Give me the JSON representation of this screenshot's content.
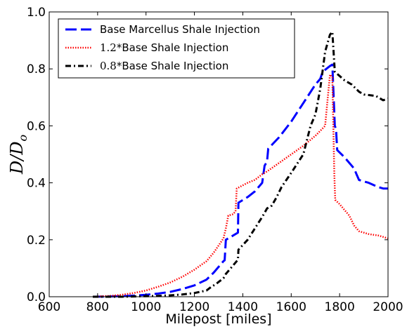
{
  "chart_data": {
    "type": "line",
    "xlabel": "Milepost [miles]",
    "ylabel": "D/D",
    "ylabel_subscript": "o",
    "xlim": [
      600,
      2000
    ],
    "ylim": [
      0,
      1.0
    ],
    "xticks": [
      600,
      800,
      1000,
      1200,
      1400,
      1600,
      1800,
      2000
    ],
    "yticks": [
      0.0,
      0.2,
      0.4,
      0.6,
      0.8,
      1.0
    ],
    "xtick_labels": [
      "600",
      "800",
      "1000",
      "1200",
      "1400",
      "1600",
      "1800",
      "2000"
    ],
    "ytick_labels": [
      "0.0",
      "0.2",
      "0.4",
      "0.6",
      "0.8",
      "1.0"
    ],
    "grid": false,
    "legend_position": "top-left",
    "series": [
      {
        "name": "Base Marcellus Shale Injection",
        "color": "#0000ff",
        "style": "dashed",
        "points": [
          [
            780,
            0.0
          ],
          [
            850,
            0.001
          ],
          [
            900,
            0.002
          ],
          [
            950,
            0.004
          ],
          [
            1000,
            0.007
          ],
          [
            1050,
            0.011
          ],
          [
            1100,
            0.017
          ],
          [
            1150,
            0.027
          ],
          [
            1200,
            0.04
          ],
          [
            1250,
            0.06
          ],
          [
            1280,
            0.085
          ],
          [
            1300,
            0.105
          ],
          [
            1320,
            0.125
          ],
          [
            1325,
            0.128
          ],
          [
            1330,
            0.2
          ],
          [
            1360,
            0.215
          ],
          [
            1380,
            0.225
          ],
          [
            1382,
            0.33
          ],
          [
            1420,
            0.35
          ],
          [
            1450,
            0.37
          ],
          [
            1480,
            0.4
          ],
          [
            1490,
            0.46
          ],
          [
            1500,
            0.475
          ],
          [
            1505,
            0.52
          ],
          [
            1550,
            0.56
          ],
          [
            1600,
            0.615
          ],
          [
            1650,
            0.68
          ],
          [
            1700,
            0.745
          ],
          [
            1720,
            0.765
          ],
          [
            1730,
            0.79
          ],
          [
            1760,
            0.81
          ],
          [
            1770,
            0.815
          ],
          [
            1780,
            0.6
          ],
          [
            1785,
            0.59
          ],
          [
            1790,
            0.515
          ],
          [
            1820,
            0.49
          ],
          [
            1860,
            0.45
          ],
          [
            1870,
            0.43
          ],
          [
            1880,
            0.41
          ],
          [
            1920,
            0.4
          ],
          [
            1960,
            0.385
          ],
          [
            1980,
            0.38
          ],
          [
            2000,
            0.38
          ]
        ]
      },
      {
        "name": "1.2*Base Shale Injection",
        "color": "#ff0000",
        "style": "dotted",
        "points": [
          [
            780,
            0.0
          ],
          [
            850,
            0.003
          ],
          [
            900,
            0.007
          ],
          [
            950,
            0.013
          ],
          [
            1000,
            0.022
          ],
          [
            1050,
            0.035
          ],
          [
            1100,
            0.05
          ],
          [
            1150,
            0.07
          ],
          [
            1200,
            0.095
          ],
          [
            1250,
            0.125
          ],
          [
            1280,
            0.155
          ],
          [
            1300,
            0.18
          ],
          [
            1320,
            0.205
          ],
          [
            1330,
            0.24
          ],
          [
            1340,
            0.285
          ],
          [
            1360,
            0.29
          ],
          [
            1370,
            0.3
          ],
          [
            1375,
            0.38
          ],
          [
            1420,
            0.4
          ],
          [
            1450,
            0.41
          ],
          [
            1480,
            0.43
          ],
          [
            1500,
            0.44
          ],
          [
            1550,
            0.47
          ],
          [
            1600,
            0.5
          ],
          [
            1650,
            0.53
          ],
          [
            1700,
            0.565
          ],
          [
            1740,
            0.6
          ],
          [
            1760,
            0.78
          ],
          [
            1770,
            0.77
          ],
          [
            1778,
            0.43
          ],
          [
            1782,
            0.34
          ],
          [
            1800,
            0.325
          ],
          [
            1820,
            0.305
          ],
          [
            1840,
            0.285
          ],
          [
            1860,
            0.25
          ],
          [
            1880,
            0.23
          ],
          [
            1920,
            0.22
          ],
          [
            1960,
            0.215
          ],
          [
            2000,
            0.205
          ]
        ]
      },
      {
        "name": "0.8*Base Shale Injection",
        "color": "#000000",
        "style": "dashdot",
        "points": [
          [
            780,
            0.0
          ],
          [
            850,
            0.0
          ],
          [
            900,
            0.0
          ],
          [
            950,
            0.001
          ],
          [
            1000,
            0.002
          ],
          [
            1050,
            0.003
          ],
          [
            1100,
            0.005
          ],
          [
            1150,
            0.008
          ],
          [
            1200,
            0.013
          ],
          [
            1250,
            0.022
          ],
          [
            1270,
            0.035
          ],
          [
            1290,
            0.045
          ],
          [
            1300,
            0.052
          ],
          [
            1320,
            0.065
          ],
          [
            1330,
            0.08
          ],
          [
            1350,
            0.1
          ],
          [
            1380,
            0.13
          ],
          [
            1382,
            0.165
          ],
          [
            1420,
            0.2
          ],
          [
            1450,
            0.24
          ],
          [
            1480,
            0.28
          ],
          [
            1500,
            0.31
          ],
          [
            1520,
            0.32
          ],
          [
            1540,
            0.35
          ],
          [
            1560,
            0.385
          ],
          [
            1580,
            0.41
          ],
          [
            1600,
            0.435
          ],
          [
            1650,
            0.5
          ],
          [
            1680,
            0.6
          ],
          [
            1700,
            0.64
          ],
          [
            1720,
            0.73
          ],
          [
            1740,
            0.86
          ],
          [
            1760,
            0.92
          ],
          [
            1770,
            0.93
          ],
          [
            1780,
            0.79
          ],
          [
            1800,
            0.775
          ],
          [
            1820,
            0.76
          ],
          [
            1850,
            0.745
          ],
          [
            1880,
            0.72
          ],
          [
            1900,
            0.71
          ],
          [
            1950,
            0.705
          ],
          [
            1980,
            0.69
          ],
          [
            2000,
            0.695
          ]
        ]
      }
    ]
  },
  "legend": {
    "entries": [
      {
        "label": "Base Marcellus Shale Injection",
        "prefix": ""
      },
      {
        "label": "*Base Shale Injection",
        "prefix": "1.2"
      },
      {
        "label": "*Base Shale Injection",
        "prefix": "0.8"
      }
    ]
  }
}
